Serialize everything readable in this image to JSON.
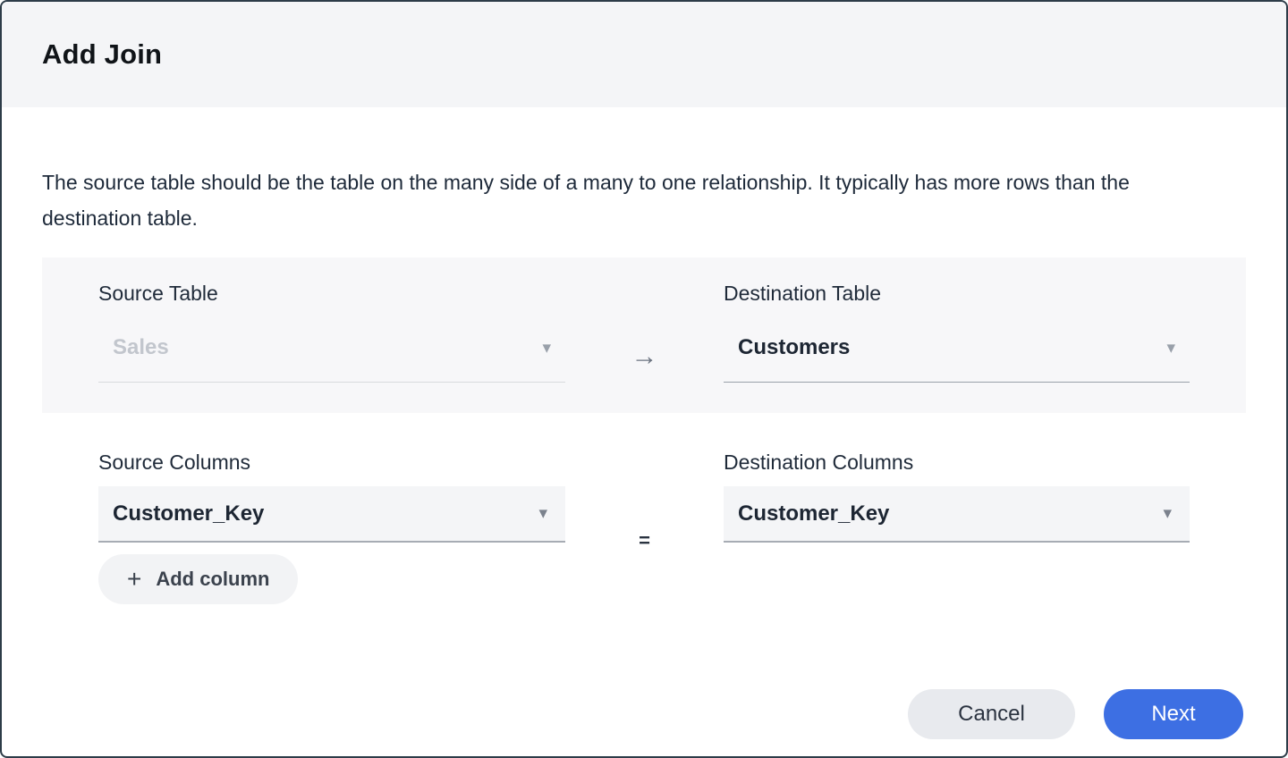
{
  "dialog": {
    "title": "Add Join",
    "description": "The source table should be the table on the many side of a many to one relationship. It typically has more rows than the destination table."
  },
  "tables_section": {
    "source": {
      "label": "Source Table",
      "value": "Sales",
      "disabled": true
    },
    "destination": {
      "label": "Destination Table",
      "value": "Customers"
    }
  },
  "columns_section": {
    "source": {
      "label": "Source Columns",
      "value": "Customer_Key"
    },
    "destination": {
      "label": "Destination Columns",
      "value": "Customer_Key"
    },
    "operator": "=",
    "add_column_label": "Add column"
  },
  "footer": {
    "cancel_label": "Cancel",
    "next_label": "Next"
  },
  "icons": {
    "arrow_right": "→",
    "plus": "+",
    "chevron_down": "▾"
  },
  "colors": {
    "accent_blue": "#3d6fe3",
    "header_background": "#f4f5f7",
    "panel_background": "#f7f7f9",
    "border": "#2d3c48"
  }
}
